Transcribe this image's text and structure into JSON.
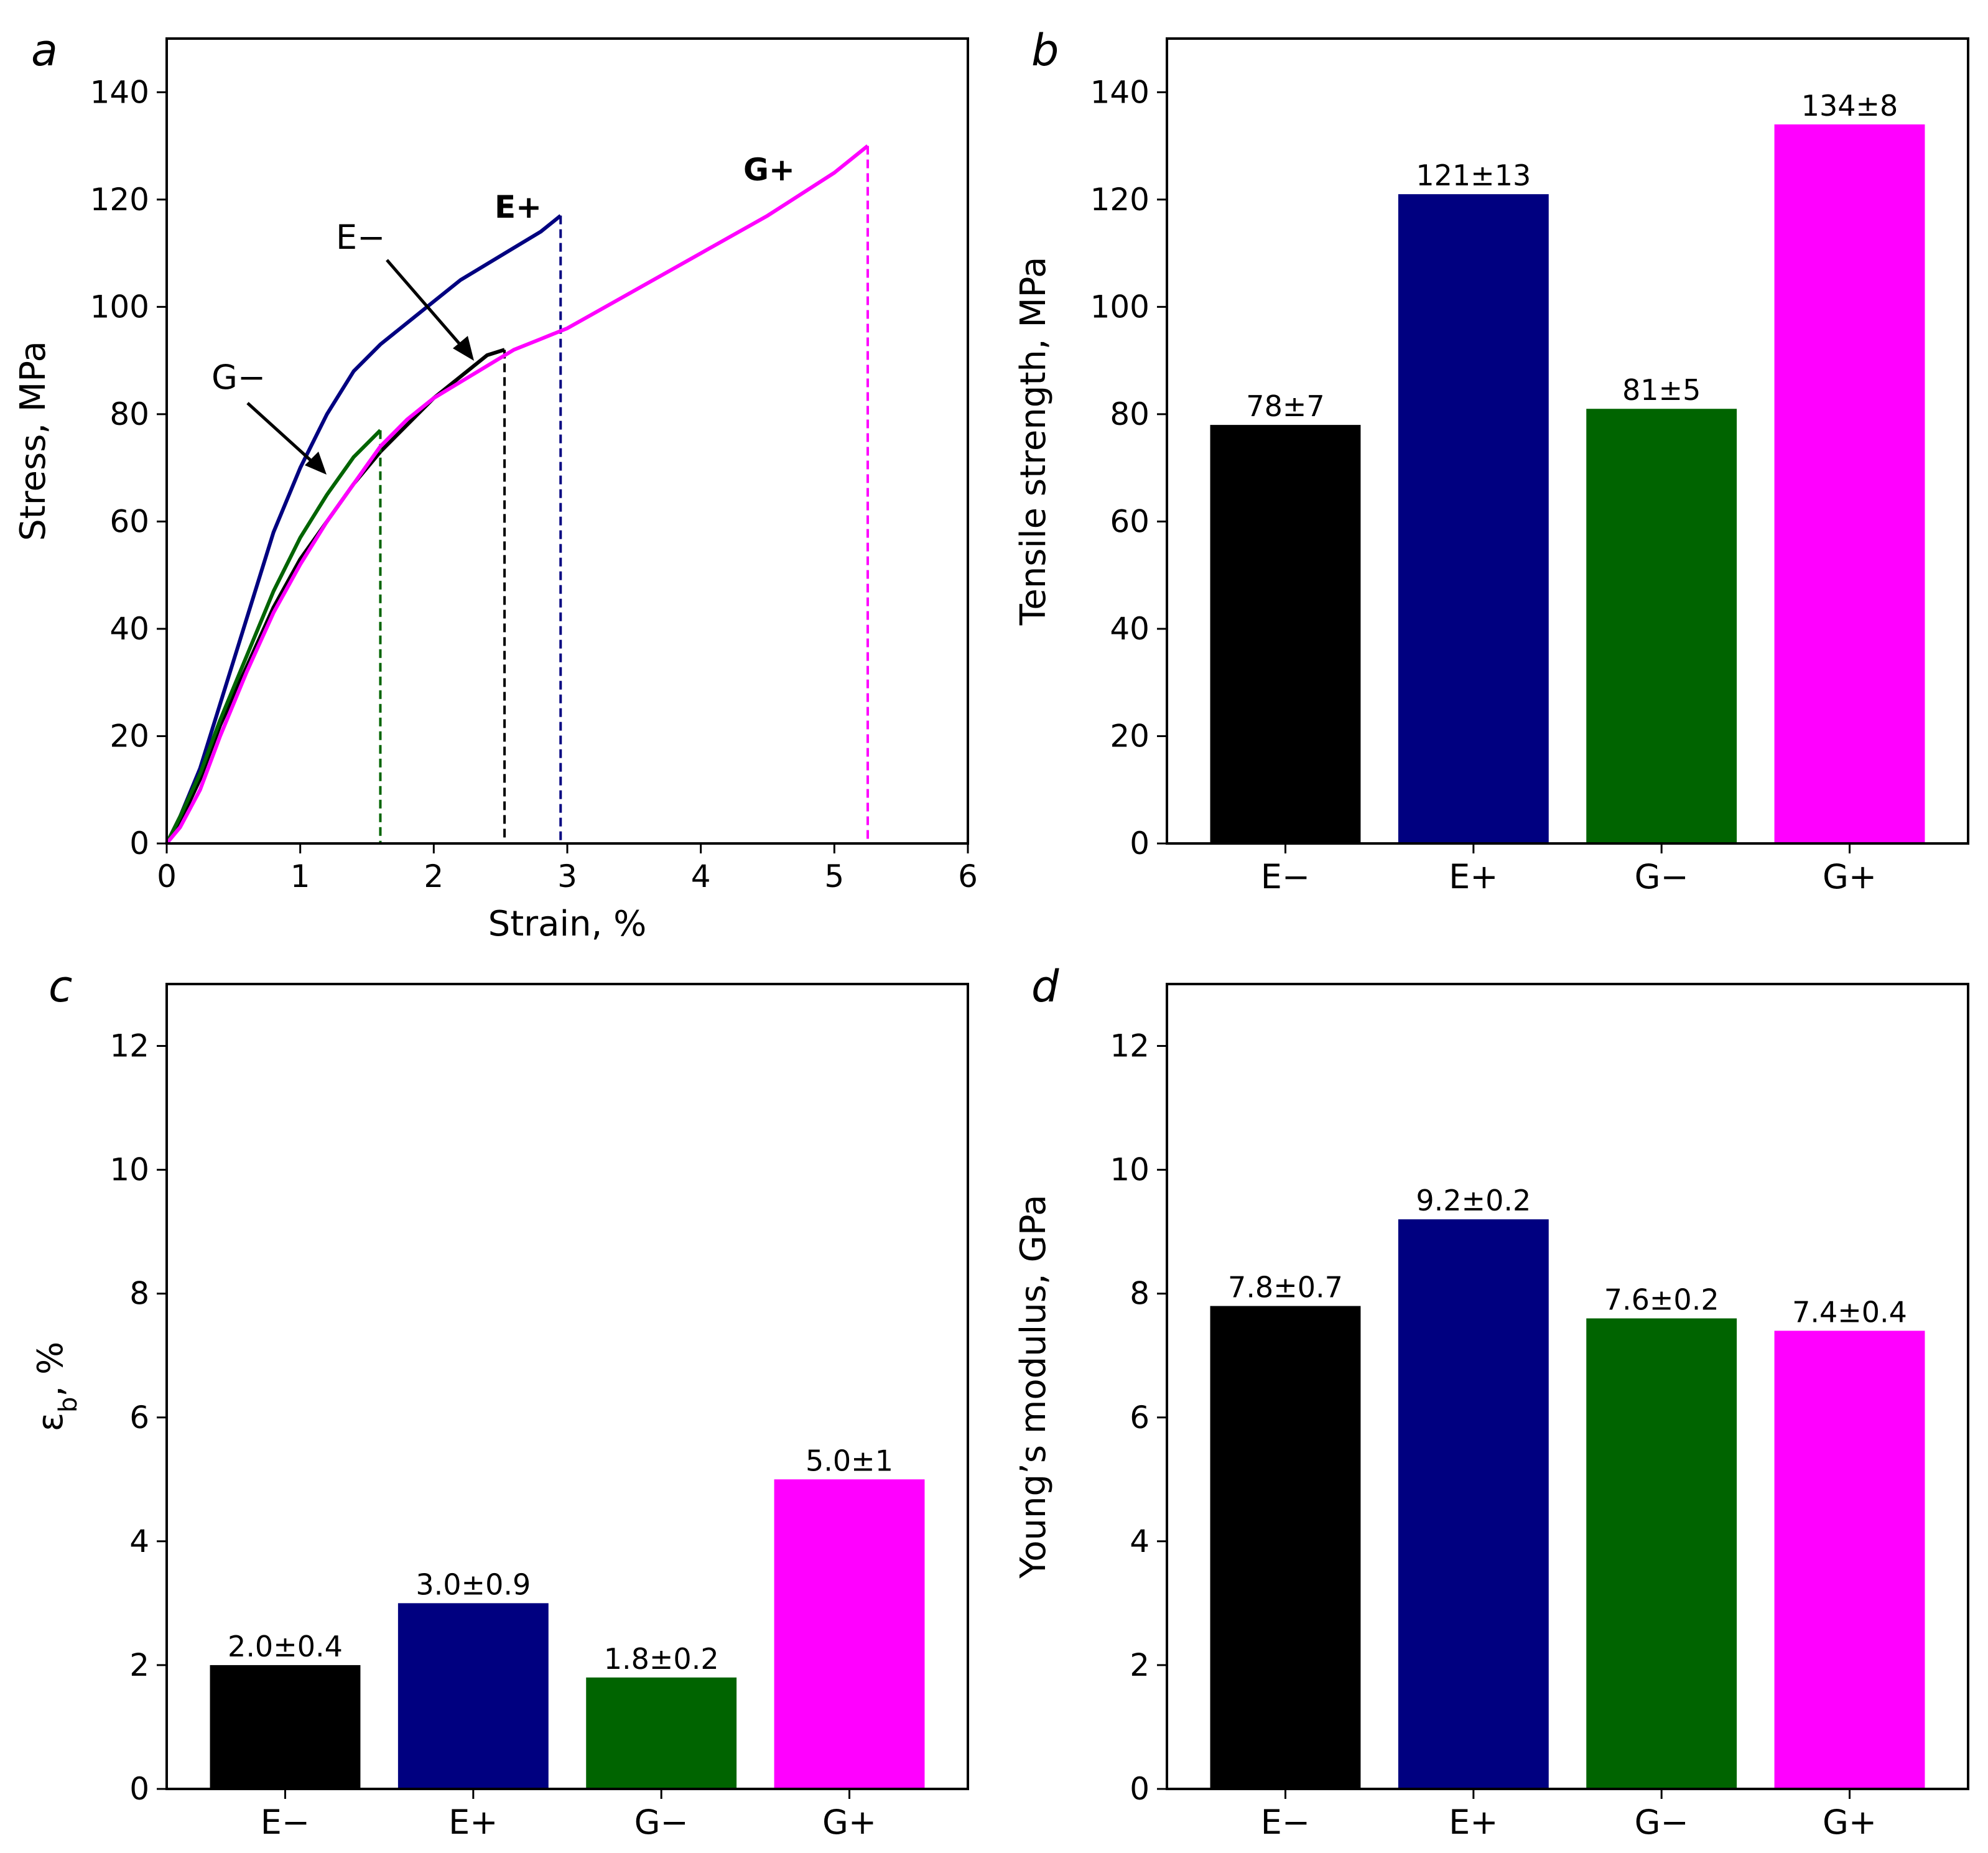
{
  "chart_data": [
    {
      "panel": "a",
      "type": "line",
      "xlabel": "Strain, %",
      "ylabel": "Stress, MPa",
      "xlim": [
        0,
        6
      ],
      "ylim": [
        0,
        150
      ],
      "xticks": [
        0,
        1,
        2,
        3,
        4,
        5,
        6
      ],
      "yticks": [
        0,
        20,
        40,
        60,
        80,
        100,
        120,
        140
      ],
      "series": [
        {
          "name": "E−",
          "color": "#000000",
          "break_strain": 2.53,
          "x": [
            0,
            0.1,
            0.25,
            0.4,
            0.6,
            0.8,
            1.0,
            1.2,
            1.4,
            1.6,
            1.8,
            2.0,
            2.2,
            2.4,
            2.53
          ],
          "y": [
            0,
            4,
            12,
            22,
            33,
            44,
            53,
            60,
            67,
            73,
            78,
            83,
            87,
            91,
            92
          ]
        },
        {
          "name": "E+",
          "color": "#000080",
          "break_strain": 2.95,
          "x": [
            0,
            0.1,
            0.25,
            0.4,
            0.6,
            0.8,
            1.0,
            1.2,
            1.4,
            1.6,
            1.8,
            2.0,
            2.2,
            2.4,
            2.6,
            2.8,
            2.95
          ],
          "y": [
            0,
            5,
            14,
            26,
            42,
            58,
            70,
            80,
            88,
            93,
            97,
            101,
            105,
            108,
            111,
            114,
            117
          ]
        },
        {
          "name": "G−",
          "color": "#006400",
          "break_strain": 1.6,
          "x": [
            0,
            0.1,
            0.25,
            0.4,
            0.6,
            0.8,
            1.0,
            1.2,
            1.4,
            1.6
          ],
          "y": [
            0,
            5,
            13,
            23,
            35,
            47,
            57,
            65,
            72,
            77
          ]
        },
        {
          "name": "G+",
          "color": "#FF00FF",
          "break_strain": 5.25,
          "x": [
            0,
            0.1,
            0.25,
            0.4,
            0.6,
            0.8,
            1.0,
            1.2,
            1.4,
            1.6,
            1.8,
            2.0,
            2.2,
            2.4,
            2.6,
            2.8,
            3.0,
            3.5,
            4.0,
            4.5,
            5.0,
            5.25
          ],
          "y": [
            0,
            3,
            10,
            20,
            32,
            43,
            52,
            60,
            67,
            74,
            79,
            83,
            86,
            89,
            92,
            94,
            96,
            103,
            110,
            117,
            125,
            130
          ]
        }
      ],
      "annotations": [
        "E−",
        "E+",
        "G−",
        "G+"
      ]
    },
    {
      "panel": "b",
      "type": "bar",
      "ylabel": "Tensile strength, MPa",
      "ylim": [
        0,
        150
      ],
      "yticks": [
        0,
        20,
        40,
        60,
        80,
        100,
        120,
        140
      ],
      "categories": [
        "E−",
        "E+",
        "G−",
        "G+"
      ],
      "values": [
        78,
        121,
        81,
        134
      ],
      "errors": [
        7,
        13,
        5,
        8
      ],
      "labels": [
        "78±7",
        "121±13",
        "81±5",
        "134±8"
      ],
      "colors": [
        "#000000",
        "#000080",
        "#006400",
        "#FF00FF"
      ]
    },
    {
      "panel": "c",
      "type": "bar",
      "ylabel": "ε",
      "ylabel_sub": "b",
      "ylabel_suffix": ", %",
      "ylim": [
        0,
        13
      ],
      "yticks": [
        0,
        2,
        4,
        6,
        8,
        10,
        12
      ],
      "categories": [
        "E−",
        "E+",
        "G−",
        "G+"
      ],
      "values": [
        2.0,
        3.0,
        1.8,
        5.0
      ],
      "errors": [
        0.4,
        0.9,
        0.2,
        1
      ],
      "labels": [
        "2.0±0.4",
        "3.0±0.9",
        "1.8±0.2",
        "5.0±1"
      ],
      "colors": [
        "#000000",
        "#000080",
        "#006400",
        "#FF00FF"
      ]
    },
    {
      "panel": "d",
      "type": "bar",
      "ylabel": "Young’s modulus, GPa",
      "ylim": [
        0,
        13
      ],
      "yticks": [
        0,
        2,
        4,
        6,
        8,
        10,
        12
      ],
      "categories": [
        "E−",
        "E+",
        "G−",
        "G+"
      ],
      "values": [
        7.8,
        9.2,
        7.6,
        7.4
      ],
      "errors": [
        0.7,
        0.2,
        0.2,
        0.4
      ],
      "labels": [
        "7.8±0.7",
        "9.2±0.2",
        "7.6±0.2",
        "7.4±0.4"
      ],
      "colors": [
        "#000000",
        "#000080",
        "#006400",
        "#FF00FF"
      ]
    }
  ]
}
